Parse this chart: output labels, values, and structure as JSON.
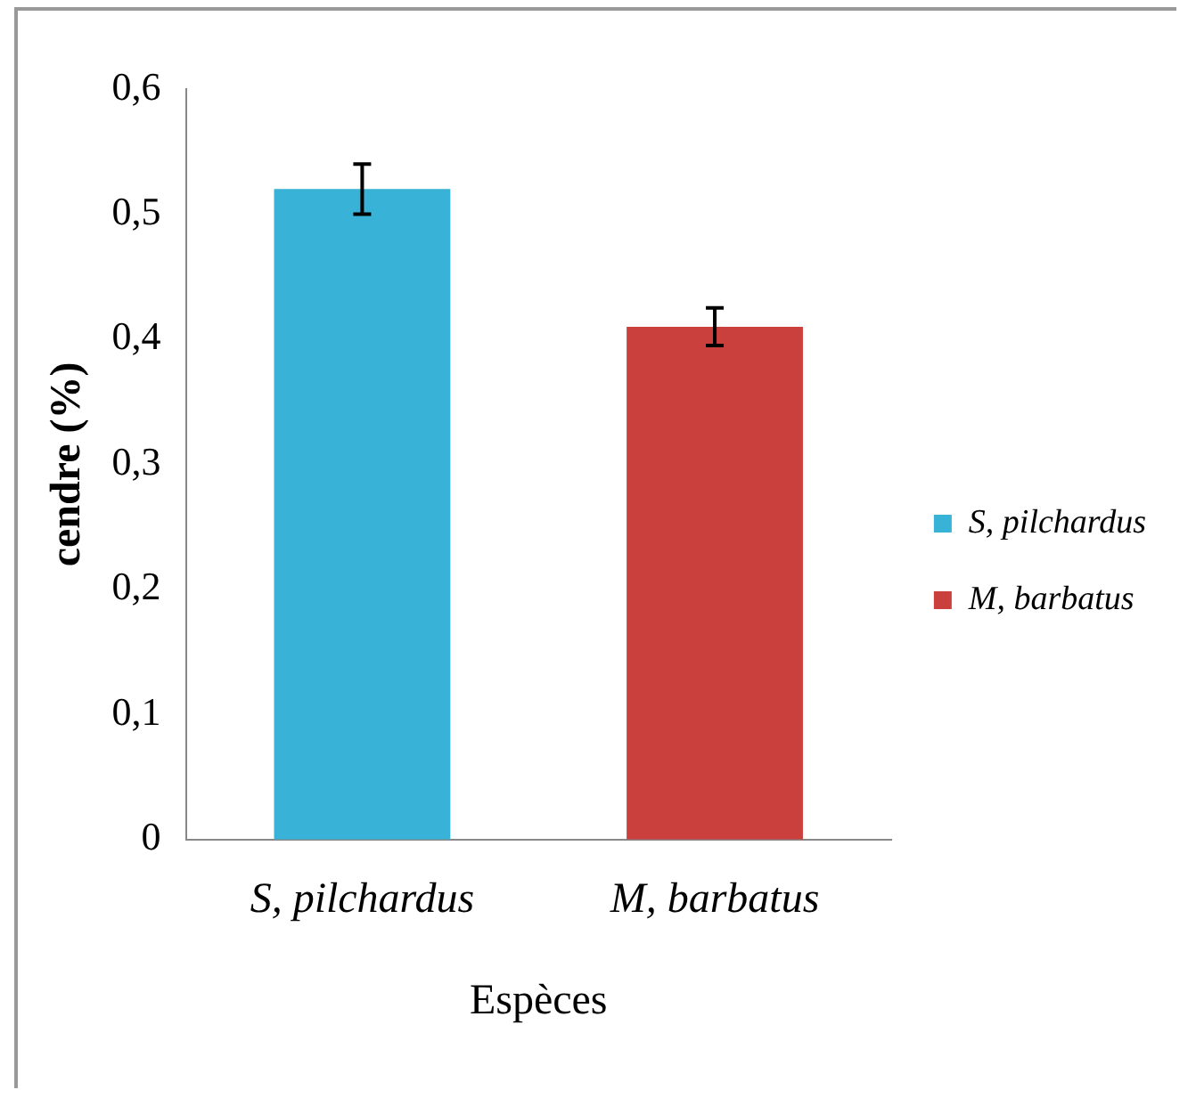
{
  "chart_data": {
    "type": "bar",
    "xlabel": "Espèces",
    "ylabel": "cendre (%)",
    "categories": [
      "S, pilchardus",
      "M, barbatus"
    ],
    "series": [
      {
        "name": "S, pilchardus",
        "color": "#38b2d6",
        "values": [
          0.52,
          null
        ],
        "errors": [
          0.02,
          null
        ]
      },
      {
        "name": "M, barbatus",
        "color": "#c9403d",
        "values": [
          null,
          0.41
        ],
        "errors": [
          null,
          0.015
        ]
      }
    ],
    "ylim": [
      0,
      0.6
    ],
    "yticks": [
      {
        "value": 0,
        "label": "0"
      },
      {
        "value": 0.1,
        "label": "0,1"
      },
      {
        "value": 0.2,
        "label": "0,2"
      },
      {
        "value": 0.3,
        "label": "0,3"
      },
      {
        "value": 0.4,
        "label": "0,4"
      },
      {
        "value": 0.5,
        "label": "0,5"
      },
      {
        "value": 0.6,
        "label": "0,6"
      }
    ],
    "grid": false,
    "legend": "right"
  }
}
